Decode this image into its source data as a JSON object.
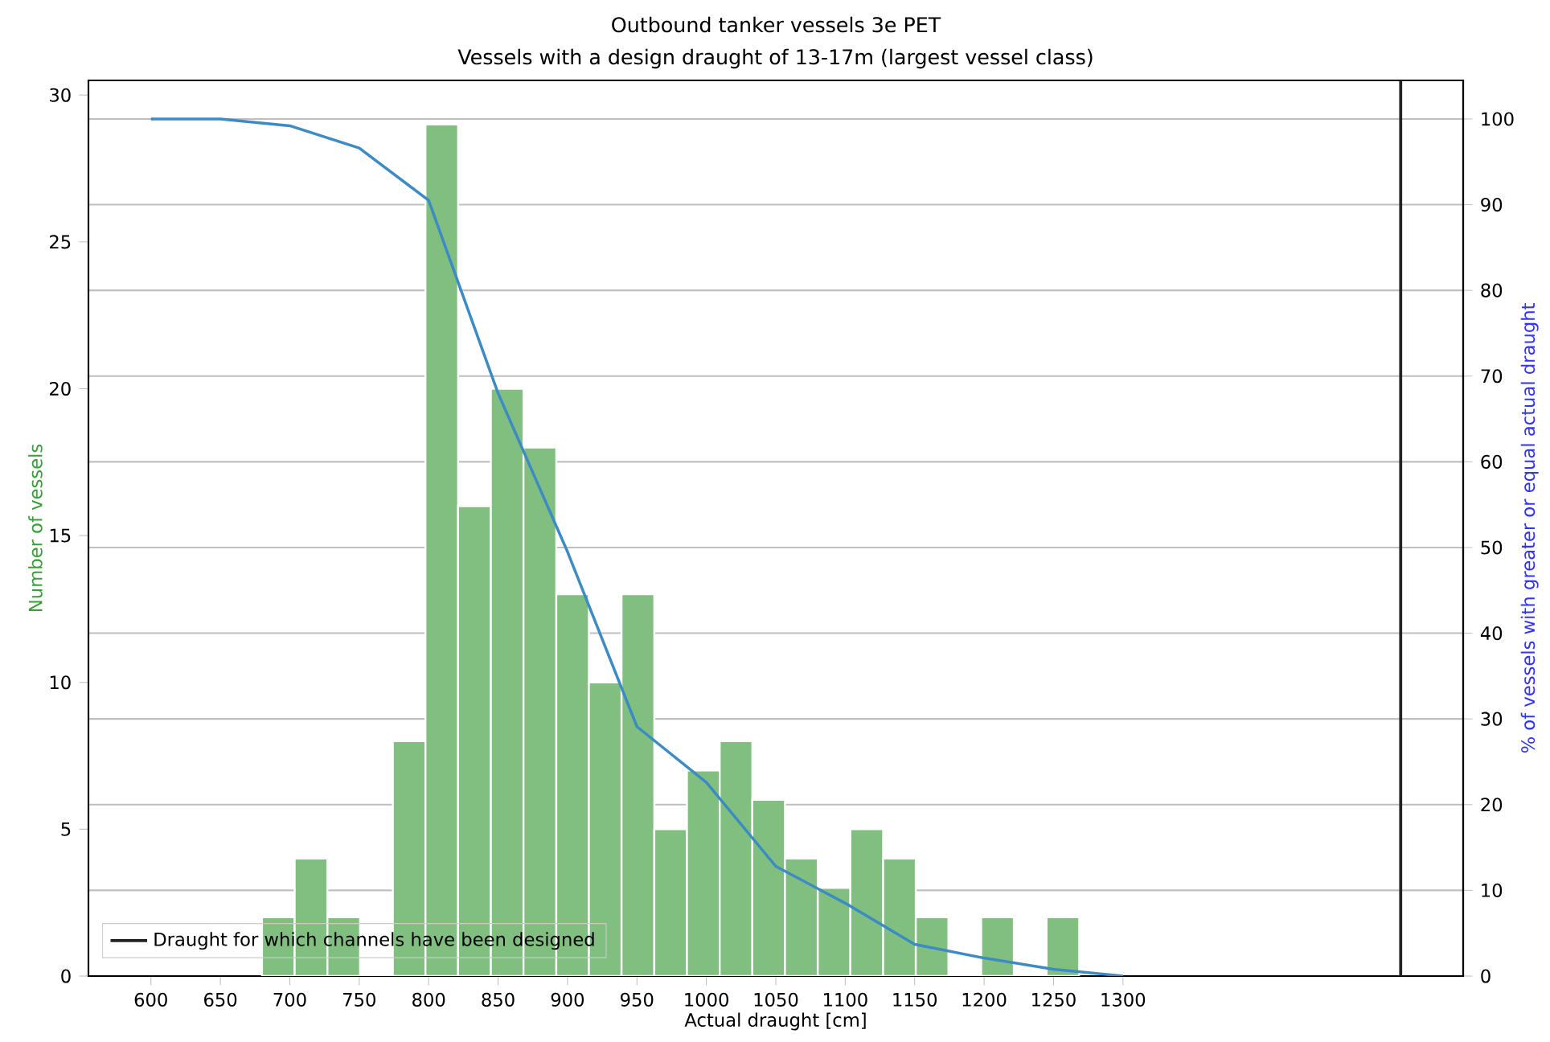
{
  "chart_data": {
    "type": "histogram",
    "title": "Outbound tanker vessels 3e PET",
    "subtitle": "Vessels with a design draught of 13-17m (largest vessel class)",
    "xlabel": "Actual draught [cm]",
    "ylabel": "Number of vessels",
    "y2label": "% of vessels with greater or equal actual draught",
    "series": [
      {
        "color": "#80bf80",
        "bins": [
          680,
          703.5,
          727.1,
          750.6,
          774.2,
          797.7,
          821.2,
          844.8,
          868.3,
          891.9,
          915.4,
          938.9,
          962.5,
          986.0,
          1009.6,
          1033.1,
          1056.6,
          1080.2,
          1103.7,
          1127.3,
          1150.8,
          1174.3,
          1197.9,
          1221.4,
          1245.0,
          1268.5
        ],
        "values": [
          2,
          4,
          2,
          0,
          8,
          29,
          16,
          20,
          18,
          13,
          10,
          13,
          5,
          7,
          8,
          6,
          4,
          3,
          5,
          4,
          2,
          0,
          2,
          0,
          2
        ]
      },
      {
        "type": "line",
        "axis": "y2",
        "color": "#3d8bc4",
        "x": [
          600,
          650,
          700,
          750,
          800,
          850,
          900,
          950,
          1000,
          1050,
          1100,
          1150,
          1200,
          1250,
          1300
        ],
        "values": [
          100,
          100,
          99.2,
          96.6,
          90.5,
          68,
          49.5,
          29.1,
          22.6,
          12.8,
          8.5,
          3.7,
          2.1,
          0.8,
          0
        ]
      }
    ],
    "xlim": [
      555,
      1545
    ],
    "xticks": [
      600,
      650,
      700,
      750,
      800,
      850,
      900,
      950,
      1000,
      1050,
      1100,
      1150,
      1200,
      1250,
      1300
    ],
    "ylim": [
      0,
      30.5
    ],
    "yticks": [
      0,
      5,
      10,
      15,
      20,
      25,
      30
    ],
    "y2lim": [
      0,
      104.5
    ],
    "y2ticks": [
      0,
      10,
      20,
      30,
      40,
      50,
      60,
      70,
      80,
      90,
      100
    ],
    "ref_lines": [
      {
        "axis": "x",
        "value": 1500,
        "label": "Draught for which channels have been designed",
        "color": "#222222"
      }
    ],
    "grid": "y",
    "legend": "bottom left"
  }
}
